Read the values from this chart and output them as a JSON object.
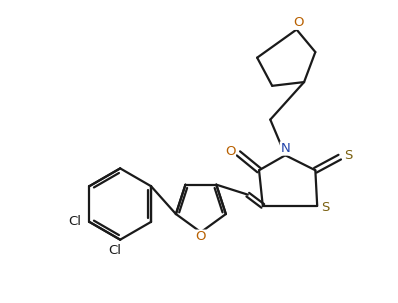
{
  "bg_color": "#ffffff",
  "line_color": "#1a1a1a",
  "atom_colors": {
    "O": "#b86000",
    "N": "#2244aa",
    "S": "#7a6010",
    "Cl": "#1a1a1a"
  },
  "line_width": 1.6,
  "font_size": 9.5,
  "figsize": [
    3.98,
    3.03
  ],
  "dpi": 100
}
